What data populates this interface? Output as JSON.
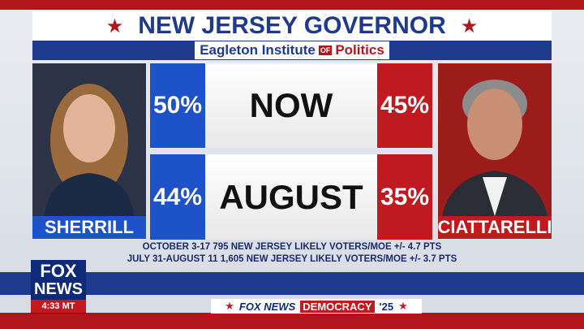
{
  "header": {
    "title": "NEW JERSEY GOVERNOR",
    "sponsor": [
      "Eagleton Institute",
      "OF",
      "Politics"
    ]
  },
  "candidates": [
    {
      "name": "SHERRILL"
    },
    {
      "name": "CIATTARELLI"
    }
  ],
  "rows": [
    {
      "label": "NOW",
      "left": "50%",
      "right": "45%"
    },
    {
      "label": "AUGUST",
      "left": "44%",
      "right": "35%"
    }
  ],
  "notes": [
    "OCTOBER 3-17 795 NEW JERSEY LIKELY VOTERS/MOE +/- 4.7 PTS",
    "JULY 31-AUGUST 11 1,605 NEW JERSEY LIKELY VOTERS/MOE +/- 3.7 PTS"
  ],
  "logo": {
    "top": "FOX",
    "bottom": "NEWS",
    "time": "4:33 MT"
  },
  "ticker": {
    "brand": "FOX NEWS",
    "show": "DEMOCRACY",
    "year": "'25"
  }
}
